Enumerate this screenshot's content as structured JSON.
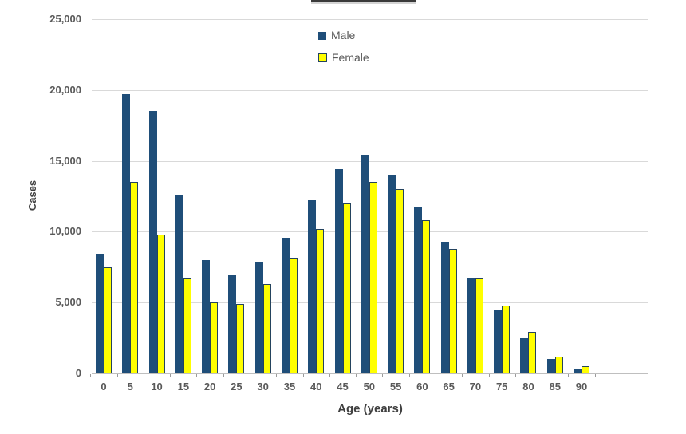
{
  "chart_data": {
    "type": "bar",
    "categories": [
      "0",
      "5",
      "10",
      "15",
      "20",
      "25",
      "30",
      "35",
      "40",
      "45",
      "50",
      "55",
      "60",
      "65",
      "70",
      "75",
      "80",
      "85",
      "90"
    ],
    "series": [
      {
        "name": "Male",
        "color": "#1f4e79",
        "values": [
          8400,
          19700,
          18500,
          12600,
          8000,
          6900,
          7800,
          9600,
          12200,
          14400,
          15400,
          14000,
          11700,
          9300,
          6700,
          4500,
          2500,
          1000,
          300
        ]
      },
      {
        "name": "Female",
        "color": "#ffff00",
        "border_color": "#24435f",
        "values": [
          7500,
          13500,
          9800,
          6700,
          5000,
          4900,
          6300,
          8100,
          10200,
          12000,
          13500,
          13000,
          10800,
          8800,
          6700,
          4800,
          2900,
          1200,
          500
        ]
      }
    ],
    "xlabel": "Age (years)",
    "ylabel": "Cases",
    "ylim": [
      0,
      25000
    ],
    "ytick_step": 5000,
    "yticks": [
      "0",
      "5,000",
      "10,000",
      "15,000",
      "20,000",
      "25,000"
    ],
    "grid": true,
    "legend_position": "top-center",
    "colors": {
      "gridline": "#d9d9d9",
      "axis_line": "#bfbfbf",
      "tick_mark": "#9b9b9b",
      "tick_label": "#595959",
      "axis_title": "#3f3f3f",
      "legend_text": "#595959"
    }
  }
}
